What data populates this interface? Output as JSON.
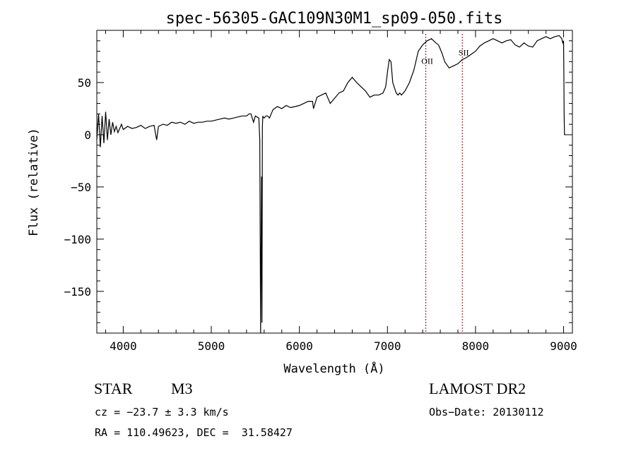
{
  "chart_data": {
    "type": "line",
    "title": "spec-56305-GAC109N30M1_sp09-050.fits",
    "xlabel": "Wavelength (Å)",
    "ylabel": "Flux (relative)",
    "xlim": [
      3700,
      9100
    ],
    "ylim": [
      -190,
      100
    ],
    "x_ticks": [
      4000,
      5000,
      6000,
      7000,
      8000,
      9000
    ],
    "x_tick_labels": [
      "4000",
      "5000",
      "6000",
      "7000",
      "8000",
      "9000"
    ],
    "y_ticks": [
      -150,
      -100,
      -50,
      0,
      50
    ],
    "y_tick_labels": [
      "−150",
      "−100",
      "−50",
      "0",
      "50"
    ],
    "grid": false,
    "series": [
      {
        "x": [
          3700,
          3720,
          3740,
          3760,
          3780,
          3800,
          3820,
          3840,
          3860,
          3880,
          3900,
          3920,
          3940,
          3960,
          3980,
          4000,
          4050,
          4100,
          4150,
          4200,
          4250,
          4300,
          4350,
          4380,
          4400,
          4450,
          4500,
          4550,
          4600,
          4650,
          4700,
          4750,
          4800,
          4850,
          4900,
          4950,
          5000,
          5050,
          5100,
          5150,
          5200,
          5250,
          5300,
          5350,
          5400,
          5430,
          5450,
          5480,
          5500,
          5520,
          5540,
          5550,
          5560,
          5570,
          5575,
          5580,
          5585,
          5590,
          5600,
          5620,
          5640,
          5660,
          5680,
          5700,
          5750,
          5800,
          5850,
          5900,
          5950,
          6000,
          6050,
          6100,
          6150,
          6160,
          6200,
          6250,
          6300,
          6350,
          6400,
          6450,
          6500,
          6550,
          6600,
          6650,
          6700,
          6750,
          6800,
          6850,
          6900,
          6950,
          6980,
          7000,
          7020,
          7040,
          7060,
          7080,
          7100,
          7120,
          7140,
          7160,
          7200,
          7250,
          7300,
          7350,
          7400,
          7450,
          7500,
          7550,
          7580,
          7600,
          7620,
          7650,
          7700,
          7750,
          7800,
          7850,
          7900,
          7950,
          8000,
          8050,
          8100,
          8150,
          8200,
          8250,
          8300,
          8350,
          8400,
          8450,
          8500,
          8550,
          8600,
          8650,
          8700,
          8750,
          8800,
          8850,
          8900,
          8950,
          8980,
          8990,
          9000,
          9003,
          9006,
          9010,
          9020
        ],
        "y": [
          -5,
          20,
          -12,
          18,
          -8,
          22,
          -5,
          15,
          0,
          12,
          3,
          8,
          2,
          6,
          10,
          5,
          8,
          6,
          7,
          9,
          6,
          8,
          9,
          -5,
          8,
          10,
          9,
          12,
          11,
          12,
          10,
          13,
          11,
          12,
          12,
          13,
          13,
          14,
          15,
          16,
          15,
          16,
          17,
          18,
          18,
          20,
          20,
          12,
          18,
          17,
          16,
          -5,
          -190,
          -40,
          -180,
          8,
          18,
          17,
          16,
          18,
          18,
          16,
          20,
          24,
          27,
          25,
          28,
          26,
          27,
          28,
          30,
          32,
          32,
          25,
          36,
          38,
          40,
          30,
          35,
          40,
          42,
          50,
          55,
          50,
          46,
          42,
          36,
          38,
          38,
          40,
          46,
          60,
          72,
          70,
          50,
          45,
          40,
          38,
          40,
          38,
          42,
          50,
          62,
          80,
          86,
          90,
          92,
          88,
          86,
          82,
          78,
          70,
          64,
          66,
          68,
          72,
          74,
          77,
          80,
          85,
          88,
          90,
          92,
          90,
          88,
          90,
          91,
          86,
          84,
          88,
          85,
          84,
          90,
          92,
          94,
          92,
          94,
          95,
          92,
          88,
          90,
          60,
          20,
          0,
          0
        ]
      }
    ],
    "annotations": [
      {
        "text": "OII",
        "x": 7436,
        "y": 68
      },
      {
        "text": "SII",
        "x": 7850,
        "y": 76
      }
    ],
    "marker_lines_x": [
      7436,
      7850
    ],
    "marker_line_color": "#8b0000"
  },
  "info": {
    "object_class": "STAR",
    "subclass": "M3",
    "survey": "LAMOST DR2",
    "cz": "cz = −23.7 ± 3.3 km/s",
    "obs_date": "Obs−Date: 20130112",
    "coords": "RA = 110.49623, DEC =  31.58427"
  }
}
